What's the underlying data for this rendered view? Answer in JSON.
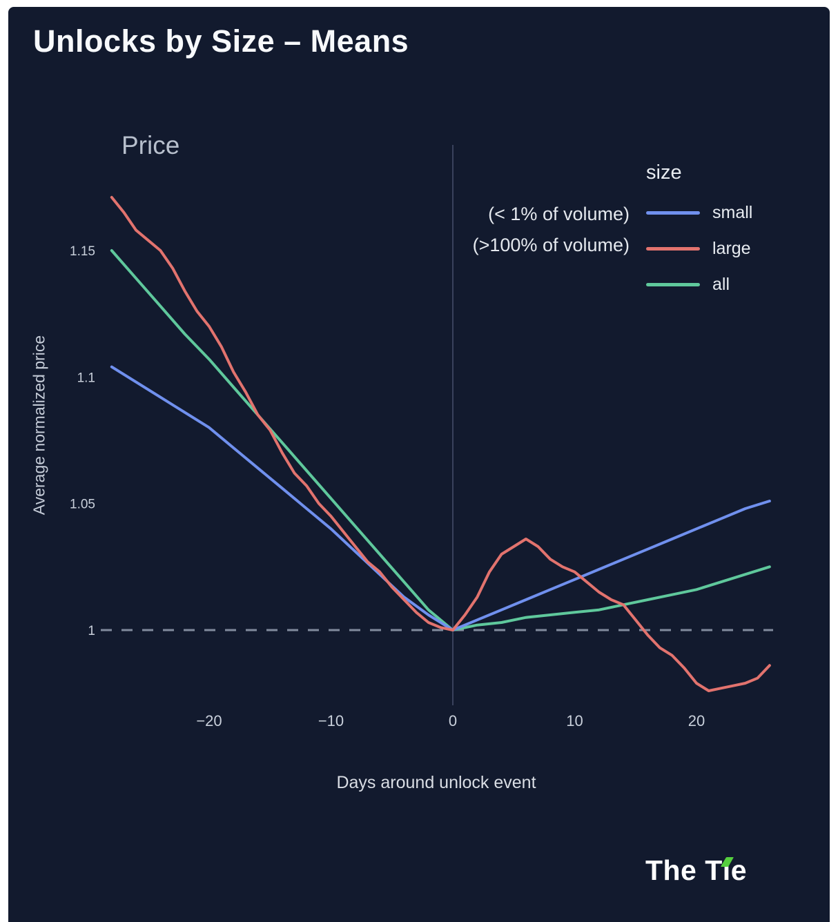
{
  "page": {
    "title": "Unlocks by Size – Means",
    "background_color": "#121A2E",
    "frame_color": "#ffffff"
  },
  "brand": {
    "name": "The Tie",
    "text_t": "The T",
    "text_i": "ı",
    "text_e": "e",
    "accent_color": "#55cf3e"
  },
  "chart_data": {
    "type": "line",
    "title": "Price",
    "xlabel": "Days around unlock event",
    "ylabel": "Average normalized price",
    "xlim": [
      -29,
      26.5
    ],
    "ylim": [
      0.96,
      1.18
    ],
    "x_ticks": [
      -20,
      -10,
      0,
      10,
      20
    ],
    "y_ticks": [
      1,
      1.05,
      1.1,
      1.15
    ],
    "grid": false,
    "reference_lines": {
      "vertical_line_x": 0,
      "dashed_horizontal_y": 1,
      "vertical_line_color": "#39425C",
      "dashed_line_color": "#818B9D"
    },
    "legend": {
      "title": "size",
      "position": "top-right",
      "entries": [
        {
          "label": "small"
        },
        {
          "label": "large"
        },
        {
          "label": "all"
        }
      ]
    },
    "annotations": [
      {
        "text": "(< 1% of volume)"
      },
      {
        "text": "(>100% of volume)"
      }
    ],
    "series": [
      {
        "name": "small",
        "color": "#7090EE",
        "x": [
          -28,
          -26,
          -24,
          -22,
          -20,
          -18,
          -16,
          -14,
          -12,
          -10,
          -8,
          -6,
          -4,
          -2,
          0,
          2,
          4,
          6,
          8,
          10,
          12,
          14,
          16,
          18,
          20,
          22,
          24,
          26
        ],
        "y": [
          1.104,
          1.098,
          1.092,
          1.086,
          1.08,
          1.072,
          1.064,
          1.056,
          1.048,
          1.04,
          1.031,
          1.022,
          1.013,
          1.006,
          1.0,
          1.004,
          1.008,
          1.012,
          1.016,
          1.02,
          1.024,
          1.028,
          1.032,
          1.036,
          1.04,
          1.044,
          1.048,
          1.051
        ]
      },
      {
        "name": "large",
        "color": "#E2736E",
        "x": [
          -28,
          -27,
          -26,
          -25,
          -24,
          -23,
          -22,
          -21,
          -20,
          -19,
          -18,
          -17,
          -16,
          -15,
          -14,
          -13,
          -12,
          -11,
          -10,
          -9,
          -8,
          -7,
          -6,
          -5,
          -4,
          -3,
          -2,
          -1,
          0,
          1,
          2,
          3,
          4,
          5,
          6,
          7,
          8,
          9,
          10,
          11,
          12,
          13,
          14,
          15,
          16,
          17,
          18,
          19,
          20,
          21,
          22,
          23,
          24,
          25,
          26
        ],
        "y": [
          1.171,
          1.165,
          1.158,
          1.154,
          1.15,
          1.143,
          1.134,
          1.126,
          1.12,
          1.112,
          1.102,
          1.094,
          1.085,
          1.079,
          1.07,
          1.062,
          1.057,
          1.05,
          1.045,
          1.039,
          1.033,
          1.027,
          1.023,
          1.017,
          1.012,
          1.007,
          1.003,
          1.001,
          1.0,
          1.006,
          1.013,
          1.023,
          1.03,
          1.033,
          1.036,
          1.033,
          1.028,
          1.025,
          1.023,
          1.019,
          1.015,
          1.012,
          1.01,
          1.004,
          0.998,
          0.993,
          0.99,
          0.985,
          0.979,
          0.976,
          0.977,
          0.978,
          0.979,
          0.981,
          0.986
        ]
      },
      {
        "name": "all",
        "color": "#5FC89C",
        "x": [
          -28,
          -26,
          -24,
          -22,
          -20,
          -18,
          -16,
          -14,
          -12,
          -10,
          -8,
          -6,
          -4,
          -2,
          0,
          2,
          4,
          6,
          8,
          10,
          12,
          14,
          16,
          18,
          20,
          22,
          24,
          26
        ],
        "y": [
          1.15,
          1.139,
          1.128,
          1.117,
          1.107,
          1.096,
          1.085,
          1.074,
          1.063,
          1.052,
          1.041,
          1.03,
          1.019,
          1.008,
          1.0,
          1.002,
          1.003,
          1.005,
          1.006,
          1.007,
          1.008,
          1.01,
          1.012,
          1.014,
          1.016,
          1.019,
          1.022,
          1.025
        ]
      }
    ]
  }
}
